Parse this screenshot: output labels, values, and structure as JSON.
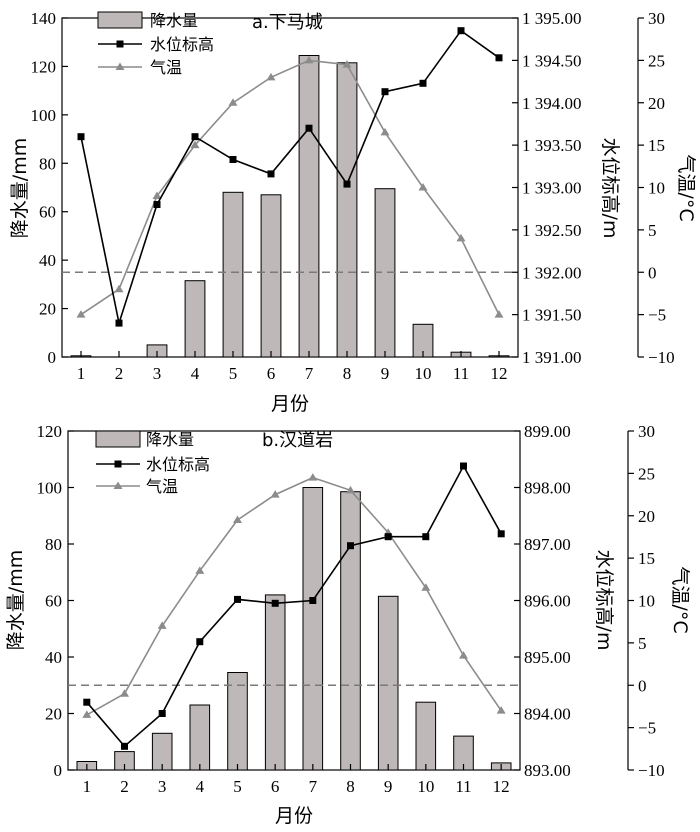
{
  "colors": {
    "bar_fill": "#bfb8b8",
    "bar_stroke": "#000000",
    "water_line": "#000000",
    "temp_line": "#8c8c8c",
    "ref_line": "#7a7a7a"
  },
  "chart_data": [
    {
      "type": "bar+line",
      "panel": "top",
      "title": "a.下马城",
      "xlabel": "月份",
      "ylabel_left": "降水量/mm",
      "ylabel_right1": "水位标高/m",
      "ylabel_right2": "气温/°C",
      "categories": [
        "1",
        "2",
        "3",
        "4",
        "5",
        "6",
        "7",
        "8",
        "9",
        "10",
        "11",
        "12"
      ],
      "left_axis": {
        "min": 0,
        "max": 140,
        "ticks": [
          "0",
          "20",
          "40",
          "60",
          "80",
          "100",
          "120",
          "140"
        ]
      },
      "right1_axis": {
        "min": 1391.0,
        "max": 1395.0,
        "ticks": [
          "1 391.00",
          "1 391.50",
          "1 392.00",
          "1 392.50",
          "1 393.00",
          "1 393.50",
          "1 394.00",
          "1 394.50",
          "1 395.00"
        ]
      },
      "right2_axis": {
        "min": -10,
        "max": 30,
        "ticks": [
          "−10",
          "−5",
          "0",
          "5",
          "10",
          "15",
          "20",
          "25",
          "30"
        ]
      },
      "legend": [
        "降水量",
        "水位标高",
        "气温"
      ],
      "series": [
        {
          "name": "降水量",
          "axis": "left",
          "kind": "bar",
          "values": [
            0.5,
            0,
            5,
            31.5,
            68,
            67,
            124.5,
            121.5,
            69.5,
            13.5,
            2,
            0.5
          ]
        },
        {
          "name": "水位标高",
          "axis": "right1",
          "kind": "line",
          "marker": "square",
          "values": [
            1393.6,
            1391.4,
            1392.8,
            1393.6,
            1393.33,
            1393.16,
            1393.7,
            1393.04,
            1394.13,
            1394.23,
            1394.85,
            1394.53
          ]
        },
        {
          "name": "气温",
          "axis": "right2",
          "kind": "line",
          "marker": "triangle",
          "values": [
            -5,
            -2,
            9,
            15,
            20,
            23,
            25,
            24.5,
            16.5,
            10,
            4,
            -5
          ]
        }
      ],
      "reference_line": {
        "axis": "right2",
        "value": 0,
        "style": "dashed"
      }
    },
    {
      "type": "bar+line",
      "panel": "bottom",
      "title": "b.汉道岩",
      "xlabel": "月份",
      "ylabel_left": "降水量/mm",
      "ylabel_right1": "水位标高/m",
      "ylabel_right2": "气温/°C",
      "categories": [
        "1",
        "2",
        "3",
        "4",
        "5",
        "6",
        "7",
        "8",
        "9",
        "10",
        "11",
        "12"
      ],
      "left_axis": {
        "min": 0,
        "max": 120,
        "ticks": [
          "0",
          "20",
          "40",
          "60",
          "80",
          "100",
          "120"
        ]
      },
      "right1_axis": {
        "min": 893.0,
        "max": 899.0,
        "ticks": [
          "893.00",
          "894.00",
          "895.00",
          "896.00",
          "897.00",
          "898.00",
          "899.00"
        ]
      },
      "right2_axis": {
        "min": -10,
        "max": 30,
        "ticks": [
          "−10",
          "−5",
          "0",
          "5",
          "10",
          "15",
          "20",
          "25",
          "30"
        ]
      },
      "legend": [
        "降水量",
        "水位标高",
        "气温"
      ],
      "series": [
        {
          "name": "降水量",
          "axis": "left",
          "kind": "bar",
          "values": [
            3,
            6.5,
            13,
            23,
            34.5,
            62,
            100,
            98.5,
            61.5,
            24,
            12,
            2.5
          ]
        },
        {
          "name": "水位标高",
          "axis": "right1",
          "kind": "line",
          "marker": "square",
          "values": [
            894.2,
            893.42,
            894.0,
            895.27,
            896.02,
            895.95,
            896.0,
            896.97,
            897.13,
            897.13,
            898.38,
            897.18
          ]
        },
        {
          "name": "气温",
          "axis": "right2",
          "kind": "line",
          "marker": "triangle",
          "values": [
            -3.5,
            -1,
            7,
            13.5,
            19.5,
            22.5,
            24.5,
            23,
            18,
            11.5,
            3.5,
            -3
          ]
        }
      ],
      "reference_line": {
        "axis": "right2",
        "value": 0,
        "style": "dashed"
      }
    }
  ]
}
